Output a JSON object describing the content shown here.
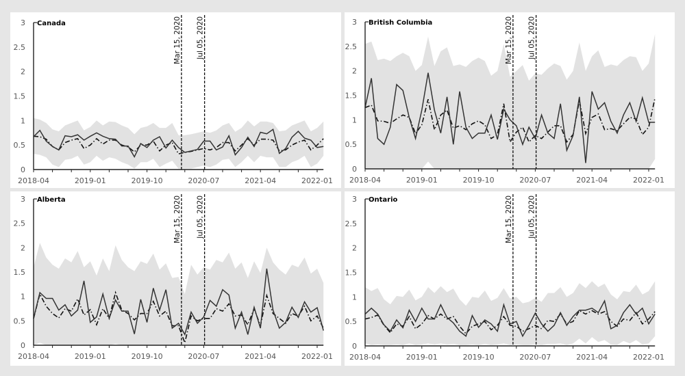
{
  "chart_data": [
    {
      "type": "line",
      "title": "Canada",
      "x_start": "2018-04",
      "x_ticks": [
        "2018-04",
        "2019-01",
        "2019-10",
        "2020-07",
        "2021-04",
        "2022-01"
      ],
      "ylim": [
        0,
        3
      ],
      "y_ticks": [
        "0",
        "0.5",
        "1",
        "1.5",
        "2",
        "2.5",
        "3"
      ],
      "events": [
        "Mar 15, 2020",
        "Jul 05, 2020"
      ],
      "observed": [
        0.67,
        0.8,
        0.58,
        0.47,
        0.4,
        0.69,
        0.67,
        0.71,
        0.6,
        0.68,
        0.75,
        0.68,
        0.63,
        0.62,
        0.48,
        0.48,
        0.26,
        0.53,
        0.45,
        0.6,
        0.67,
        0.44,
        0.6,
        0.45,
        0.35,
        0.38,
        0.41,
        0.58,
        0.58,
        0.4,
        0.46,
        0.69,
        0.3,
        0.45,
        0.66,
        0.47,
        0.76,
        0.73,
        0.82,
        0.33,
        0.43,
        0.66,
        0.78,
        0.64,
        0.6,
        0.45,
        0.47
      ],
      "predicted": [
        0.68,
        0.67,
        0.62,
        0.47,
        0.4,
        0.55,
        0.6,
        0.63,
        0.43,
        0.5,
        0.63,
        0.52,
        0.6,
        0.6,
        0.5,
        0.46,
        0.36,
        0.5,
        0.5,
        0.58,
        0.38,
        0.5,
        0.55,
        0.32,
        0.35,
        0.37,
        0.4,
        0.43,
        0.4,
        0.45,
        0.55,
        0.55,
        0.38,
        0.5,
        0.63,
        0.5,
        0.62,
        0.62,
        0.6,
        0.38,
        0.4,
        0.5,
        0.56,
        0.6,
        0.4,
        0.5,
        0.63
      ],
      "band_upper": [
        1.05,
        1.02,
        0.95,
        0.82,
        0.78,
        0.9,
        0.95,
        1.0,
        0.8,
        0.87,
        1.0,
        0.9,
        0.98,
        0.97,
        0.9,
        0.85,
        0.72,
        0.85,
        0.88,
        0.95,
        0.85,
        0.85,
        0.95,
        0.7,
        0.7,
        0.72,
        0.75,
        0.78,
        0.75,
        0.8,
        0.9,
        0.95,
        0.77,
        0.85,
        1.0,
        0.88,
        0.98,
        0.98,
        0.95,
        0.78,
        0.8,
        0.9,
        0.95,
        1.0,
        0.78,
        0.85,
        0.98
      ],
      "band_lower": [
        0.32,
        0.3,
        0.25,
        0.1,
        0.05,
        0.2,
        0.22,
        0.28,
        0.1,
        0.15,
        0.28,
        0.18,
        0.25,
        0.22,
        0.15,
        0.1,
        0.02,
        0.15,
        0.15,
        0.22,
        0.05,
        0.12,
        0.18,
        0.02,
        0.02,
        0.02,
        0.05,
        0.08,
        0.05,
        0.1,
        0.2,
        0.22,
        0.05,
        0.15,
        0.28,
        0.15,
        0.28,
        0.25,
        0.25,
        0.05,
        0.05,
        0.15,
        0.2,
        0.28,
        0.05,
        0.12,
        0.28
      ]
    },
    {
      "type": "line",
      "title": "British Columbia",
      "x_start": "2018-04",
      "x_ticks": [
        "2018-04",
        "2019-01",
        "2019-10",
        "2020-07",
        "2021-04",
        "2022-01"
      ],
      "ylim": [
        0,
        3
      ],
      "y_ticks": [
        "0",
        "0.5",
        "1",
        "1.5",
        "2",
        "2.5",
        "3"
      ],
      "events": [
        "Mar 15, 2020",
        "Jul 05, 2020"
      ],
      "observed": [
        1.25,
        1.85,
        0.62,
        0.5,
        0.85,
        1.72,
        1.6,
        1.05,
        0.62,
        1.2,
        1.96,
        1.2,
        0.73,
        1.47,
        0.5,
        1.58,
        0.85,
        0.62,
        0.73,
        0.73,
        1.1,
        0.6,
        1.22,
        1.0,
        0.88,
        0.5,
        0.85,
        0.62,
        1.1,
        0.73,
        0.62,
        1.33,
        0.38,
        0.68,
        1.47,
        0.12,
        1.58,
        1.22,
        1.35,
        0.97,
        0.73,
        1.1,
        1.35,
        0.97,
        1.45,
        0.95,
        0.95
      ],
      "predicted": [
        1.25,
        1.3,
        0.98,
        0.97,
        0.93,
        1.02,
        1.1,
        1.05,
        0.72,
        0.9,
        1.42,
        0.8,
        1.1,
        1.2,
        0.83,
        0.88,
        0.8,
        0.92,
        0.98,
        0.9,
        0.62,
        0.7,
        1.33,
        0.55,
        0.75,
        0.85,
        0.55,
        0.68,
        0.62,
        0.75,
        0.88,
        0.88,
        0.55,
        0.7,
        1.4,
        0.72,
        1.05,
        1.12,
        0.8,
        0.82,
        0.78,
        0.92,
        1.05,
        1.02,
        0.7,
        0.85,
        1.45
      ],
      "band_upper": [
        2.55,
        2.6,
        2.22,
        2.25,
        2.2,
        2.3,
        2.37,
        2.3,
        2.0,
        2.12,
        2.7,
        2.1,
        2.4,
        2.48,
        2.1,
        2.13,
        2.08,
        2.2,
        2.27,
        2.2,
        1.9,
        2.0,
        2.55,
        1.88,
        2.0,
        2.12,
        1.8,
        1.95,
        1.92,
        2.05,
        2.15,
        2.1,
        1.82,
        2.0,
        2.58,
        2.0,
        2.3,
        2.42,
        2.08,
        2.13,
        2.1,
        2.22,
        2.3,
        2.28,
        2.0,
        2.15,
        2.75
      ],
      "band_lower": [
        0,
        0,
        0,
        0,
        0,
        0,
        0,
        0,
        0,
        0,
        0.15,
        0,
        0,
        0,
        0,
        0,
        0,
        0,
        0,
        0,
        0,
        0,
        0,
        0,
        0,
        0,
        0,
        0,
        0,
        0,
        0,
        0,
        0,
        0,
        0,
        0,
        0,
        0,
        0,
        0,
        0,
        0,
        0,
        0,
        0,
        0,
        0.2
      ]
    },
    {
      "type": "line",
      "title": "Alberta",
      "x_start": "2018-04",
      "x_ticks": [
        "2018-04",
        "2019-01",
        "2019-10",
        "2020-07",
        "2021-04",
        "2022-01"
      ],
      "ylim": [
        0,
        3
      ],
      "y_ticks": [
        "0",
        "0.5",
        "1",
        "1.5",
        "2",
        "2.5",
        "3"
      ],
      "events": [
        "Mar 15, 2020",
        "Jul 05, 2020"
      ],
      "observed": [
        0.55,
        1.08,
        0.96,
        0.96,
        0.72,
        0.83,
        0.6,
        0.72,
        1.32,
        0.47,
        0.58,
        1.05,
        0.55,
        0.93,
        0.7,
        0.7,
        0.23,
        0.94,
        0.47,
        1.17,
        0.72,
        1.14,
        0.35,
        0.45,
        0.22,
        0.68,
        0.45,
        0.58,
        0.92,
        0.8,
        1.14,
        1.03,
        0.35,
        0.68,
        0.22,
        0.78,
        0.35,
        1.57,
        0.72,
        0.35,
        0.47,
        0.78,
        0.57,
        0.89,
        0.68,
        0.77,
        0.3
      ],
      "predicted": [
        0.55,
        1.05,
        0.8,
        0.65,
        0.56,
        0.75,
        0.7,
        0.95,
        0.62,
        0.73,
        0.42,
        0.75,
        0.55,
        1.08,
        0.72,
        0.65,
        0.52,
        0.65,
        0.65,
        0.9,
        0.6,
        0.7,
        0.4,
        0.4,
        0.05,
        0.6,
        0.5,
        0.55,
        0.55,
        0.75,
        0.7,
        0.85,
        0.6,
        0.62,
        0.42,
        0.75,
        0.4,
        1.02,
        0.65,
        0.55,
        0.45,
        0.65,
        0.6,
        0.8,
        0.5,
        0.6,
        0.35
      ],
      "band_upper": [
        1.6,
        2.1,
        1.8,
        1.65,
        1.57,
        1.78,
        1.7,
        1.93,
        1.6,
        1.72,
        1.43,
        1.78,
        1.52,
        2.05,
        1.75,
        1.6,
        1.52,
        1.72,
        1.67,
        1.88,
        1.55,
        1.68,
        1.38,
        1.4,
        1.05,
        1.65,
        1.45,
        1.6,
        1.55,
        1.75,
        1.7,
        1.9,
        1.57,
        1.7,
        1.38,
        1.72,
        1.48,
        2.0,
        1.7,
        1.55,
        1.45,
        1.65,
        1.6,
        1.8,
        1.47,
        1.57,
        1.28
      ],
      "band_lower": [
        0,
        0.05,
        0,
        0,
        0,
        0,
        0,
        0,
        0,
        0,
        0,
        0,
        0,
        0.03,
        0,
        0,
        0,
        0,
        0,
        0,
        0,
        0,
        0,
        0,
        0,
        0,
        0,
        0,
        0,
        0,
        0,
        0,
        0,
        0,
        0,
        0,
        0,
        0,
        0,
        0,
        0,
        0,
        0,
        0,
        0,
        0,
        0
      ]
    },
    {
      "type": "line",
      "title": "Ontario",
      "x_start": "2018-04",
      "x_ticks": [
        "2018-04",
        "2019-01",
        "2019-10",
        "2020-07",
        "2021-04",
        "2022-01"
      ],
      "ylim": [
        0,
        3
      ],
      "y_ticks": [
        "0",
        "0.5",
        "1",
        "1.5",
        "2",
        "2.5",
        "3"
      ],
      "events": [
        "Mar 15, 2020",
        "Jul 05, 2020"
      ],
      "observed": [
        0.65,
        0.77,
        0.65,
        0.43,
        0.3,
        0.53,
        0.37,
        0.73,
        0.5,
        0.77,
        0.55,
        0.55,
        0.84,
        0.58,
        0.47,
        0.3,
        0.2,
        0.62,
        0.38,
        0.53,
        0.45,
        0.3,
        0.84,
        0.45,
        0.5,
        0.2,
        0.42,
        0.67,
        0.45,
        0.3,
        0.42,
        0.68,
        0.42,
        0.6,
        0.73,
        0.73,
        0.77,
        0.68,
        0.92,
        0.35,
        0.42,
        0.68,
        0.84,
        0.65,
        0.77,
        0.45,
        0.65
      ],
      "predicted": [
        0.55,
        0.58,
        0.63,
        0.42,
        0.27,
        0.45,
        0.4,
        0.6,
        0.35,
        0.45,
        0.62,
        0.55,
        0.65,
        0.55,
        0.6,
        0.4,
        0.25,
        0.4,
        0.45,
        0.5,
        0.33,
        0.42,
        0.6,
        0.42,
        0.4,
        0.3,
        0.35,
        0.42,
        0.35,
        0.52,
        0.5,
        0.65,
        0.45,
        0.5,
        0.72,
        0.65,
        0.72,
        0.65,
        0.7,
        0.5,
        0.4,
        0.55,
        0.52,
        0.68,
        0.45,
        0.55,
        0.7
      ],
      "band_upper": [
        1.2,
        1.12,
        1.18,
        0.95,
        0.85,
        1.02,
        1.0,
        1.15,
        0.93,
        1.0,
        1.2,
        1.08,
        1.22,
        1.1,
        1.17,
        0.95,
        0.82,
        1.0,
        0.98,
        1.13,
        0.92,
        0.98,
        1.18,
        0.97,
        1.0,
        0.87,
        0.9,
        0.98,
        0.9,
        1.08,
        1.08,
        1.2,
        1.0,
        1.08,
        1.28,
        1.18,
        1.32,
        1.2,
        1.27,
        1.05,
        0.95,
        1.12,
        1.1,
        1.25,
        1.05,
        1.12,
        1.32
      ],
      "band_lower": [
        0.05,
        0.02,
        0.03,
        0.02,
        0.02,
        0.03,
        0.02,
        0.05,
        0.02,
        0.03,
        0.05,
        0.03,
        0.05,
        0.03,
        0.04,
        0.02,
        0.02,
        0.03,
        0.02,
        0.04,
        0.02,
        0.03,
        0.05,
        0.02,
        0.03,
        0.02,
        0.02,
        0.03,
        0.02,
        0.04,
        0.04,
        0.05,
        0.02,
        0.05,
        0.15,
        0.05,
        0.18,
        0.08,
        0.12,
        0.03,
        0.02,
        0.1,
        0.05,
        0.12,
        0.03,
        0.05,
        0.2
      ]
    }
  ],
  "colors": {
    "observed": "#333333",
    "predicted": "#111111",
    "band": "#e2e2e2",
    "panel": "#ffffff",
    "background": "#e6e6e6"
  }
}
